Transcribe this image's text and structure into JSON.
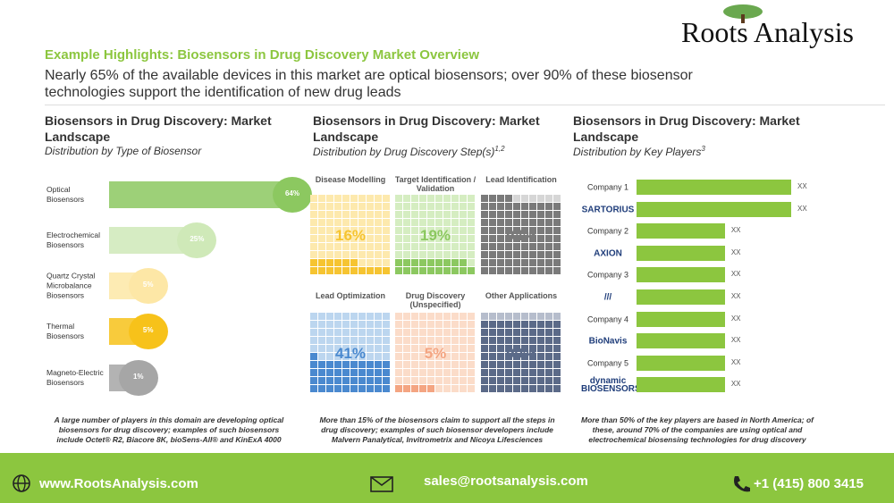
{
  "header": {
    "title": "Example Highlights: Biosensors in Drug Discovery Market Overview",
    "subtitle": "Nearly 65% of the available devices in this market are optical biosensors; over 90% of these biosensor technologies support the identification of new drug leads",
    "logo": "Roots Analysis"
  },
  "chart_data": [
    {
      "type": "hbar",
      "title": "Biosensors in Drug Discovery: Market Landscape",
      "subtitle": "Distribution by Type of Biosensor",
      "categories": [
        "Optical Biosensors",
        "Electrochemical Biosensors",
        "Quartz Crystal Microbalance Biosensors",
        "Thermal Biosensors",
        "Magneto-Electric Biosensors"
      ],
      "values": [
        64,
        25,
        5,
        5,
        1
      ],
      "value_labels": [
        "64%",
        "25%",
        "5%",
        "5%",
        "1%"
      ],
      "colors": [
        "#8cc860",
        "#cfe9b8",
        "#fde7a6",
        "#f7c21a",
        "#a6a6a6"
      ],
      "note": "A large number of players in this domain are developing optical biosensors for drug discovery; examples of such biosensors include Octet® R2, Biacore 8K, bioSens-All® and KinExA 4000"
    },
    {
      "type": "waffle",
      "title": "Biosensors in Drug Discovery: Market Landscape",
      "subtitle": "Distribution by Drug Discovery Step(s)",
      "subtitle_note": "1,2",
      "categories": [
        "Disease Modelling",
        "Target Identification / Validation",
        "Lead Identification",
        "Lead Optimization",
        "Drug Discovery (Unspecified)",
        "Other Applications"
      ],
      "values": [
        16,
        19,
        94,
        41,
        5,
        90
      ],
      "value_labels": [
        "16%",
        "19%",
        "94%",
        "41%",
        "5%",
        "90%"
      ],
      "colors": [
        "#f6c431",
        "#8cc860",
        "#7a7a7a",
        "#4a89cf",
        "#f4a582",
        "#5b6a88"
      ],
      "light_colors": [
        "#fde9ad",
        "#d5edc1",
        "#d6d6d6",
        "#bcd6ef",
        "#fbdcc9",
        "#b6bdcc"
      ],
      "note": "More than 15% of the biosensors claim to support all the steps in drug discovery; examples of such biosensor developers include Malvern Panalytical, Invitrometrix and Nicoya Lifesciences"
    },
    {
      "type": "hbar",
      "title": "Biosensors in Drug Discovery: Market Landscape",
      "subtitle": "Distribution by Key Players",
      "subtitle_note": "3",
      "categories": [
        "Company 1",
        "SARTORIUS",
        "Company 2",
        "AXION",
        "Company 3",
        "///",
        "Company 4",
        "BioNavis",
        "Company 5",
        "dynamic\nBIOSENSORS"
      ],
      "values": [
        7,
        7,
        4,
        4,
        4,
        4,
        4,
        4,
        4,
        4
      ],
      "value_labels": [
        "XX",
        "XX",
        "XX",
        "XX",
        "XX",
        "XX",
        "XX",
        "XX",
        "XX",
        "XX"
      ],
      "color": "#8cc63f",
      "note": "More than 50% of the key players are based in North America; of these, around 70% of the companies are using optical and electrochemical biosensing technologies for drug discovery"
    }
  ],
  "footer": {
    "website": "www.RootsAnalysis.com",
    "email": "sales@rootsanalysis.com",
    "phone": "+1 (415) 800 3415"
  }
}
